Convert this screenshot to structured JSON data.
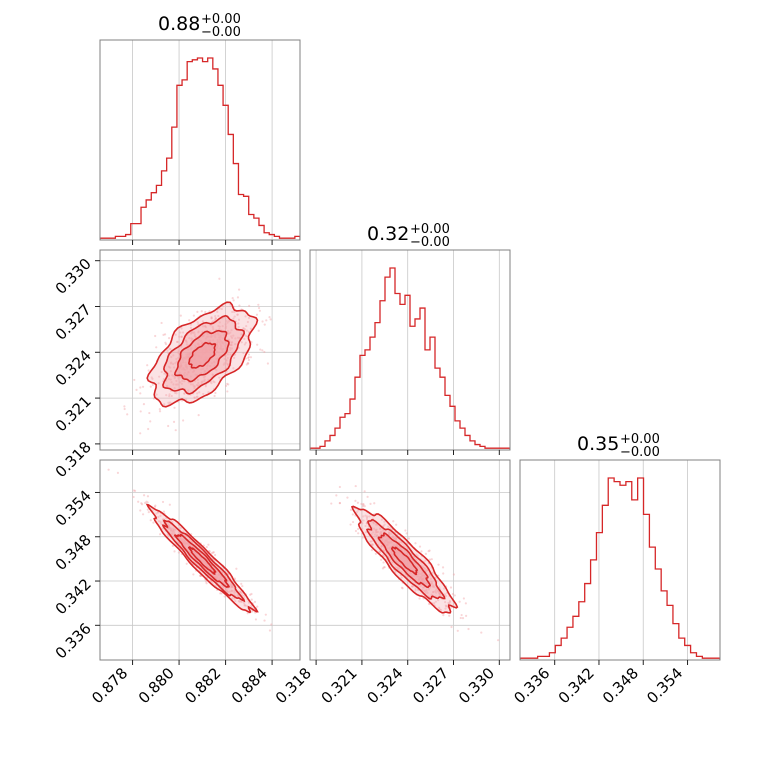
{
  "chart_data": {
    "type": "corner",
    "color": "#d62728",
    "fill_color": "#f1a3a8",
    "grid": true,
    "parameters": [
      {
        "index": 0,
        "range": [
          0.8766,
          0.8852
        ],
        "ticks": [
          0.878,
          0.88,
          0.882,
          0.884
        ],
        "tick_labels": [
          "0.878",
          "0.880",
          "0.882",
          "0.884"
        ],
        "title": {
          "value": "0.88",
          "plus": "+0.00",
          "minus": "−0.00"
        },
        "mean": 0.881,
        "sd": 0.0011,
        "hist_counts": [
          1,
          1,
          1,
          2,
          2,
          3,
          9,
          9,
          18,
          22,
          26,
          30,
          38,
          45,
          62,
          85,
          88,
          98,
          99,
          100,
          98,
          100,
          94,
          85,
          74,
          58,
          42,
          25,
          24,
          14,
          12,
          8,
          4,
          3,
          2,
          1,
          1,
          1,
          2
        ]
      },
      {
        "index": 1,
        "range": [
          0.3176,
          0.3307
        ],
        "ticks": [
          0.318,
          0.321,
          0.324,
          0.327,
          0.33
        ],
        "tick_labels": [
          "0.318",
          "0.321",
          "0.324",
          "0.327",
          "0.330"
        ],
        "title": {
          "value": "0.32",
          "plus": "+0.00",
          "minus": "−0.00"
        },
        "mean": 0.3238,
        "sd": 0.0016,
        "hist_counts": [
          1,
          1,
          2,
          5,
          8,
          12,
          18,
          20,
          28,
          40,
          52,
          55,
          62,
          70,
          82,
          95,
          100,
          86,
          80,
          85,
          68,
          72,
          78,
          55,
          62,
          45,
          40,
          30,
          24,
          16,
          12,
          8,
          5,
          3,
          2,
          1,
          1,
          1,
          1,
          1
        ]
      },
      {
        "index": 2,
        "range": [
          0.3313,
          0.3584
        ],
        "ticks": [
          0.336,
          0.342,
          0.348,
          0.354
        ],
        "tick_labels": [
          "0.336",
          "0.342",
          "0.348",
          "0.354"
        ],
        "title": {
          "value": "0.35",
          "plus": "+0.00",
          "minus": "−0.00"
        },
        "mean": 0.3448,
        "sd": 0.0035,
        "hist_counts": [
          1,
          1,
          1,
          2,
          2,
          4,
          8,
          12,
          18,
          24,
          32,
          42,
          55,
          70,
          85,
          100,
          98,
          96,
          98,
          88,
          100,
          80,
          62,
          50,
          38,
          30,
          20,
          12,
          8,
          4,
          2,
          1,
          1,
          1
        ]
      }
    ],
    "pairs": [
      {
        "x_param": 0,
        "y_param": 1,
        "correlation": 0.55
      },
      {
        "x_param": 0,
        "y_param": 2,
        "correlation": -0.96
      },
      {
        "x_param": 1,
        "y_param": 2,
        "correlation": -0.9
      }
    ]
  }
}
